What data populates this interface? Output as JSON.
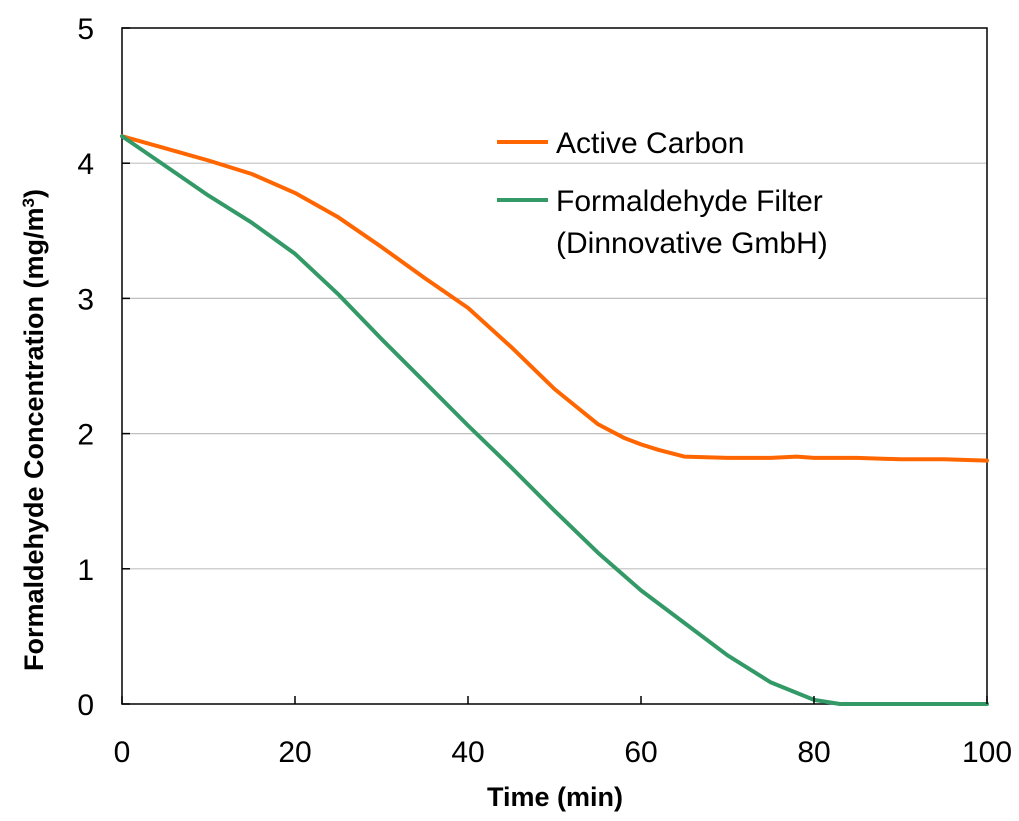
{
  "chart_data": {
    "type": "line",
    "xlabel": "Time (min)",
    "ylabel_main": "Formaldehyde Concentration  (mg/m",
    "ylabel_sup": "3",
    "ylabel_close": ")",
    "xlim": [
      0,
      100
    ],
    "ylim": [
      0,
      5
    ],
    "x_ticks": [
      0,
      20,
      40,
      60,
      80,
      100
    ],
    "y_ticks": [
      0,
      1,
      2,
      3,
      4,
      5
    ],
    "x_tick_labels": [
      "0",
      "20",
      "40",
      "60",
      "80",
      "100"
    ],
    "y_tick_labels": [
      "0",
      "1",
      "2",
      "3",
      "4",
      "5"
    ],
    "grid": "horizontal",
    "legend_position": "top-right",
    "legend": [
      {
        "label_lines": [
          "Active Carbon"
        ]
      },
      {
        "label_lines": [
          "Formaldehyde Filter",
          "(Dinnovative GmbH)"
        ]
      }
    ],
    "series": [
      {
        "name": "Active Carbon",
        "color": "#ff6600",
        "x": [
          0,
          5,
          10,
          15,
          20,
          25,
          30,
          35,
          40,
          45,
          50,
          55,
          58,
          60,
          62,
          65,
          70,
          75,
          78,
          80,
          85,
          90,
          95,
          100
        ],
        "y": [
          4.2,
          4.11,
          4.02,
          3.92,
          3.78,
          3.6,
          3.38,
          3.15,
          2.93,
          2.64,
          2.33,
          2.07,
          1.97,
          1.92,
          1.88,
          1.83,
          1.82,
          1.82,
          1.83,
          1.82,
          1.82,
          1.81,
          1.81,
          1.8
        ]
      },
      {
        "name": "Formaldehyde Filter (Dinnovative GmbH)",
        "color": "#339966",
        "x": [
          0,
          5,
          10,
          15,
          20,
          25,
          30,
          35,
          40,
          45,
          50,
          55,
          60,
          65,
          70,
          75,
          80,
          83,
          85,
          90,
          95,
          100
        ],
        "y": [
          4.2,
          3.98,
          3.76,
          3.56,
          3.33,
          3.03,
          2.7,
          2.38,
          2.06,
          1.75,
          1.43,
          1.12,
          0.84,
          0.6,
          0.36,
          0.16,
          0.03,
          0.0,
          0.0,
          0.0,
          0.0,
          0.0
        ]
      }
    ]
  }
}
